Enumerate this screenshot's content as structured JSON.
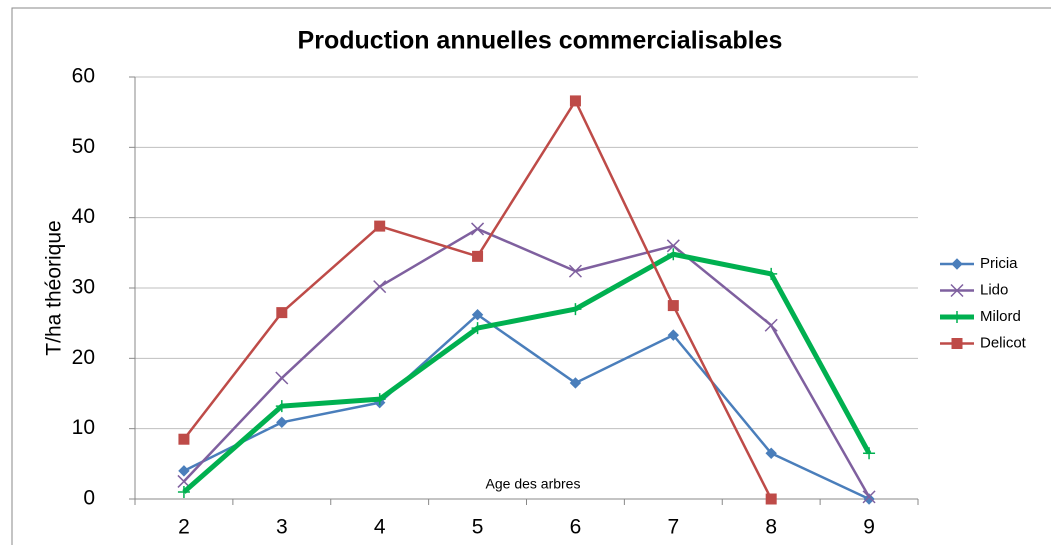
{
  "chart_data": {
    "type": "line",
    "title": "Production annuelles commercialisables",
    "y_label": "T/ha théorique",
    "annotation": "Age des arbres",
    "categories": [
      "2",
      "3",
      "4",
      "5",
      "6",
      "7",
      "8",
      "9"
    ],
    "series": [
      {
        "name": "Pricia",
        "color": "#4a7ebb",
        "marker": "diamond",
        "values": [
          4,
          10.9,
          13.7,
          26.2,
          16.5,
          23.3,
          6.5,
          0
        ]
      },
      {
        "name": "Lido",
        "color": "#7f609f",
        "marker": "x",
        "values": [
          2.5,
          17.2,
          30.2,
          38.4,
          32.4,
          36,
          24.7,
          0.3
        ]
      },
      {
        "name": "Milord",
        "color": "#00b050",
        "marker": "plus",
        "values": [
          1,
          13.2,
          14.2,
          24.3,
          27,
          34.8,
          32,
          6.5
        ]
      },
      {
        "name": "Delicot",
        "color": "#be4b48",
        "marker": "square",
        "values": [
          8.5,
          26.5,
          38.8,
          34.5,
          56.6,
          27.5,
          0,
          null
        ]
      }
    ],
    "ylim": [
      0,
      60
    ],
    "yticks": [
      0,
      10,
      20,
      30,
      40,
      50,
      60
    ],
    "grid": true,
    "legend": "right"
  }
}
